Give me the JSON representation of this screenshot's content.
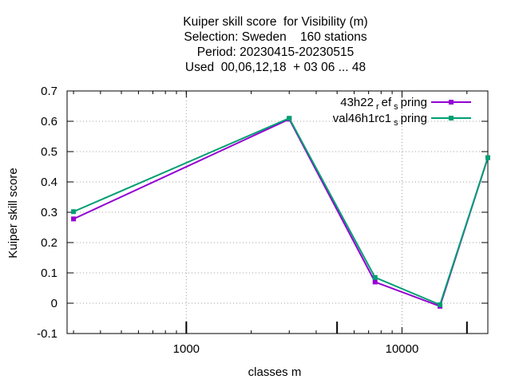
{
  "chart_data": {
    "type": "line",
    "title_lines": [
      "Kuiper skill score  for Visibility (m)",
      "Selection: Sweden    160 stations",
      "Period: 20230415-20230515",
      "Used  00,06,12,18  + 03 06 ... 48"
    ],
    "xlabel": "classes m",
    "ylabel": "Kuiper skill score",
    "x_scale": "log",
    "xlim": [
      280,
      25000
    ],
    "ylim": [
      -0.1,
      0.7
    ],
    "x_ticks": [
      {
        "value": 1000,
        "label": "1000"
      },
      {
        "value": 10000,
        "label": "10000"
      }
    ],
    "x_extra_ticks": [
      5000,
      20000
    ],
    "y_ticks": [
      {
        "value": -0.1,
        "label": "-0.1"
      },
      {
        "value": 0,
        "label": "0"
      },
      {
        "value": 0.1,
        "label": "0.1"
      },
      {
        "value": 0.2,
        "label": "0.2"
      },
      {
        "value": 0.3,
        "label": "0.3"
      },
      {
        "value": 0.4,
        "label": "0.4"
      },
      {
        "value": 0.5,
        "label": "0.5"
      },
      {
        "value": 0.6,
        "label": "0.6"
      },
      {
        "value": 0.7,
        "label": "0.7"
      }
    ],
    "grid": true,
    "legend_position": "top-right",
    "series": [
      {
        "name_main": "43h22",
        "name_sub1": "r",
        "name_mid": "ef",
        "name_sub2": "s",
        "name_tail": "pring",
        "color": "#9400d3",
        "x": [
          300,
          3000,
          7500,
          15000,
          25000
        ],
        "y": [
          0.278,
          0.607,
          0.07,
          -0.01,
          0.48
        ]
      },
      {
        "name_main": "val46h1rc1",
        "name_sub1": "",
        "name_mid": "",
        "name_sub2": "s",
        "name_tail": "pring",
        "color": "#009e73",
        "x": [
          300,
          3000,
          7500,
          15000,
          25000
        ],
        "y": [
          0.302,
          0.61,
          0.085,
          -0.005,
          0.48
        ]
      }
    ]
  }
}
